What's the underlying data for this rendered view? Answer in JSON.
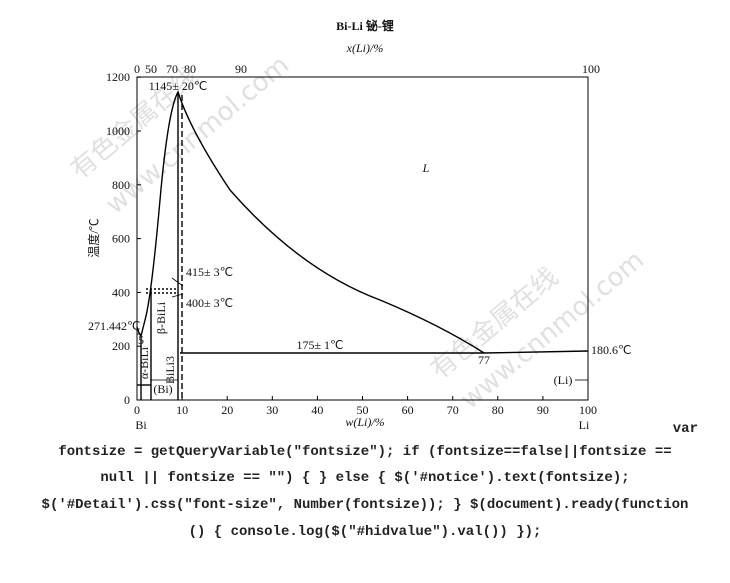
{
  "diagram": {
    "title": "Bi-Li  铋-锂",
    "top_axis_label": "x(Li)/%",
    "bottom_axis_label": "w(Li)/%",
    "y_axis_label": "温度/℃",
    "y_ticks": [
      "0",
      "200",
      "400",
      "600",
      "800",
      "1000",
      "1200"
    ],
    "bottom_ticks": [
      "0",
      "10",
      "20",
      "30",
      "40",
      "50",
      "60",
      "70",
      "80",
      "90",
      "100"
    ],
    "top_ticks": [
      "0",
      "50",
      "70",
      "80",
      "90",
      "100"
    ],
    "end_labels": [
      "Bi",
      "Li"
    ],
    "annotations": [
      "1145± 20℃",
      "L",
      "415± 3℃",
      "400± 3℃",
      "271.442℃",
      "5",
      "β-BiLi",
      "α-BiLi",
      "BiLi3",
      "(Bi)",
      "175± 1℃",
      "77",
      "180.6℃",
      "(Li)"
    ]
  },
  "watermarks": [
    "有色金属在线",
    "www.cnnmol.com",
    "有色金属在线",
    "www.cnnmol.com"
  ],
  "code": [
    "var",
    "fontsize = getQueryVariable(\"fontsize\"); if (fontsize==false||fontsize ==",
    "null || fontsize == \"\") { } else { $('#notice').text(fontsize);",
    "$('#Detail').css(\"font-size\", Number(fontsize)); } $(document).ready(function",
    "() { console.log($(\"#hidvalue\").val()) });"
  ]
}
